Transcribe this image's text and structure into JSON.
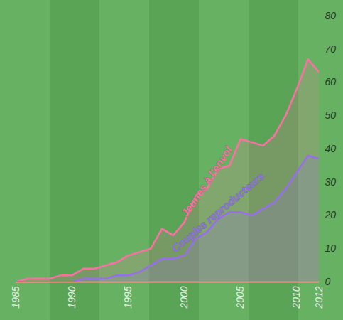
{
  "chart_data": {
    "type": "line",
    "x": [
      1985,
      1986,
      1987,
      1988,
      1989,
      1990,
      1991,
      1992,
      1993,
      1994,
      1995,
      1996,
      1997,
      1998,
      1999,
      2000,
      2001,
      2002,
      2003,
      2004,
      2005,
      2006,
      2007,
      2008,
      2009,
      2010,
      2011,
      2012
    ],
    "series": [
      {
        "name": "Jeunes à l'envol",
        "color": "#ff6fa6",
        "values": [
          0,
          1,
          1,
          1,
          2,
          2,
          4,
          4,
          5,
          6,
          8,
          9,
          10,
          16,
          14,
          18,
          26,
          28,
          34,
          35,
          43,
          42,
          41,
          44,
          50,
          58,
          67,
          63
        ]
      },
      {
        "name": "Couples reproducteurs",
        "color": "#9a6cf0",
        "values": [
          0,
          0,
          0,
          0,
          0,
          0,
          1,
          1,
          1,
          2,
          2,
          3,
          5,
          7,
          7,
          8,
          13,
          15,
          19,
          21,
          21,
          20,
          22,
          24,
          28,
          33,
          38,
          37
        ]
      }
    ],
    "xlim": [
      1985,
      2012
    ],
    "xticks": [
      1985,
      1990,
      1995,
      2000,
      2005,
      2010,
      2012
    ],
    "ylim": [
      0,
      80
    ],
    "yticks": [
      0,
      10,
      20,
      30,
      40,
      50,
      60,
      70,
      80
    ]
  }
}
